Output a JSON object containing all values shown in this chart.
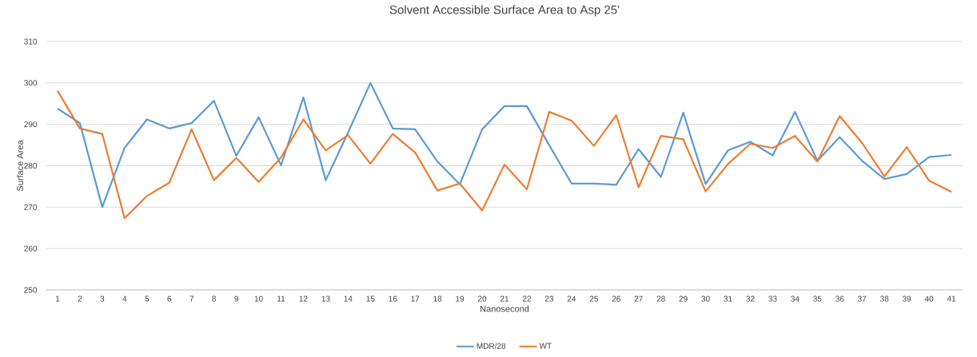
{
  "chart_data": {
    "type": "line",
    "title": "Solvent Accessible Surface Area to Asp 25'",
    "xlabel": "Nanosecond",
    "ylabel": "Surface Area",
    "categories": [
      "1",
      "2",
      "3",
      "4",
      "5",
      "6",
      "7",
      "8",
      "9",
      "10",
      "11",
      "12",
      "13",
      "14",
      "15",
      "16",
      "17",
      "18",
      "19",
      "20",
      "21",
      "22",
      "23",
      "24",
      "25",
      "26",
      "27",
      "28",
      "29",
      "30",
      "31",
      "32",
      "33",
      "34",
      "35",
      "36",
      "37",
      "38",
      "39",
      "40",
      "41"
    ],
    "series": [
      {
        "name": "MDR/28",
        "color": "#5b9bd5",
        "values": [
          293.8,
          290.3,
          270,
          284.3,
          291.2,
          289,
          290.3,
          295.7,
          282.4,
          291.7,
          280.1,
          296.5,
          276.5,
          288,
          300,
          289,
          288.8,
          281,
          275.5,
          288.8,
          294.4,
          294.4,
          285,
          275.7,
          275.7,
          275.4,
          284,
          277.3,
          292.8,
          275.6,
          283.7,
          285.8,
          282.5,
          293,
          281.2,
          286.9,
          281.2,
          276.8,
          278,
          282.1,
          282.6
        ]
      },
      {
        "name": "WT",
        "color": "#ed7d31",
        "values": [
          298.1,
          289,
          287.7,
          267.3,
          272.7,
          275.9,
          288.8,
          276.5,
          281.9,
          276.1,
          282,
          291.2,
          283.7,
          287.4,
          280.5,
          287.7,
          283.2,
          274,
          275.7,
          269.2,
          280.3,
          274.3,
          293,
          290.9,
          284.8,
          292.2,
          274.8,
          287.2,
          286.4,
          273.8,
          280.4,
          285.3,
          284.3,
          287.2,
          281,
          292,
          285.5,
          277.4,
          284.5,
          276.4,
          273.7
        ]
      }
    ],
    "ylim": [
      250,
      310
    ],
    "yticks": [
      250,
      260,
      270,
      280,
      290,
      300,
      310
    ],
    "grid": "y",
    "legend": "bottom",
    "marker": "none",
    "line_style": "solid"
  }
}
